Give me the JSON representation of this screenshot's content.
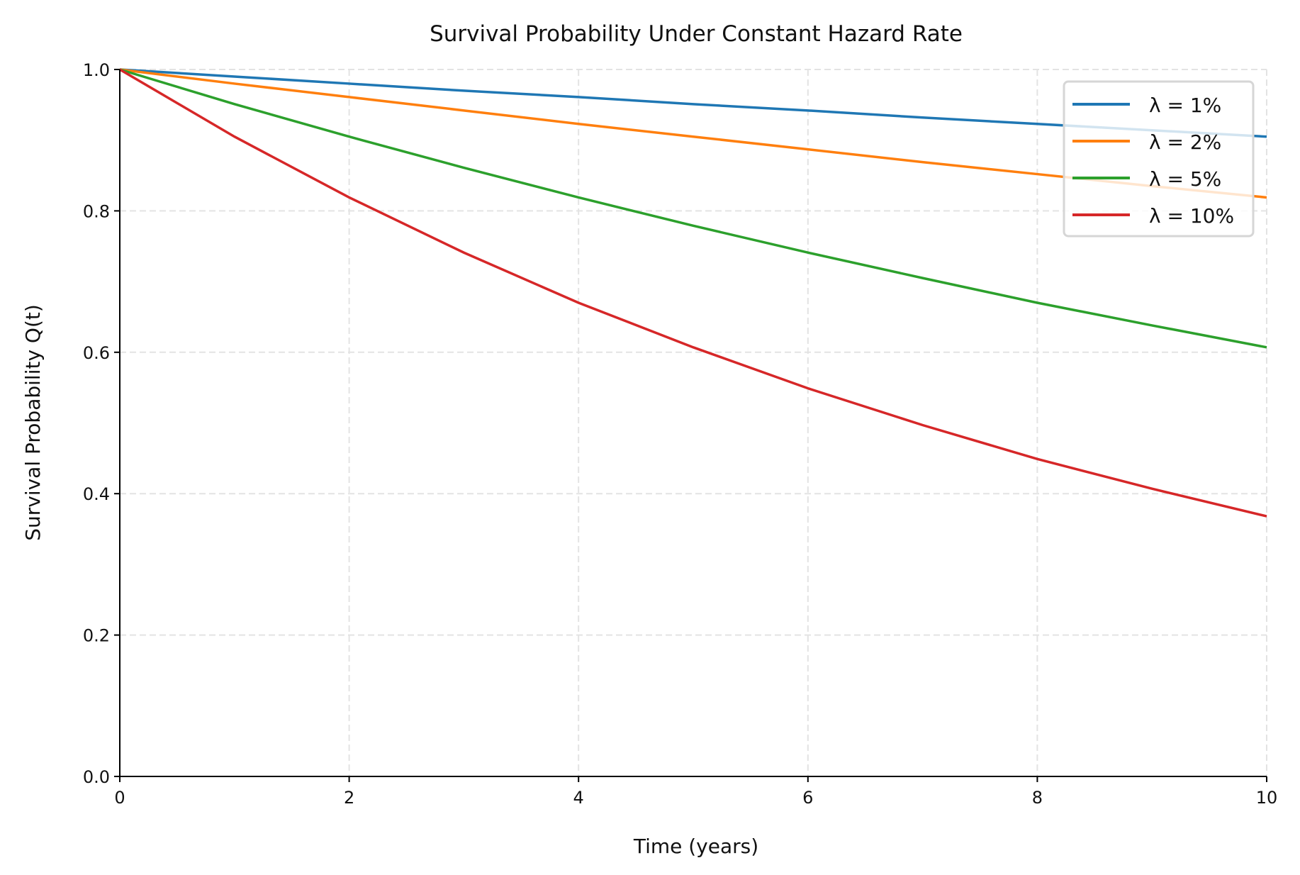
{
  "chart_data": {
    "type": "line",
    "title": "Survival Probability Under Constant Hazard Rate",
    "xlabel": "Time (years)",
    "ylabel": "Survival Probability Q(t)",
    "xlim": [
      0,
      10
    ],
    "ylim": [
      0,
      1.0
    ],
    "xticks": [
      "0",
      "2",
      "4",
      "6",
      "8",
      "10"
    ],
    "yticks": [
      "0.0",
      "0.2",
      "0.4",
      "0.6",
      "0.8",
      "1.0"
    ],
    "grid": true,
    "legend_position": "top-right",
    "x": [
      0,
      1,
      2,
      3,
      4,
      5,
      6,
      7,
      8,
      9,
      10
    ],
    "series": [
      {
        "name": "λ = 1%",
        "color": "#1f77b4",
        "values": [
          1,
          0.99,
          0.98,
          0.97,
          0.961,
          0.951,
          0.942,
          0.932,
          0.923,
          0.914,
          0.905
        ]
      },
      {
        "name": "λ = 2%",
        "color": "#ff7f0e",
        "values": [
          1,
          0.98,
          0.961,
          0.942,
          0.923,
          0.905,
          0.887,
          0.869,
          0.852,
          0.835,
          0.819
        ]
      },
      {
        "name": "λ = 5%",
        "color": "#2ca02c",
        "values": [
          1,
          0.951,
          0.905,
          0.861,
          0.819,
          0.779,
          0.741,
          0.705,
          0.67,
          0.638,
          0.607
        ]
      },
      {
        "name": "λ = 10%",
        "color": "#d62728",
        "values": [
          1,
          0.905,
          0.819,
          0.741,
          0.67,
          0.607,
          0.549,
          0.497,
          0.449,
          0.407,
          0.368
        ]
      }
    ]
  }
}
